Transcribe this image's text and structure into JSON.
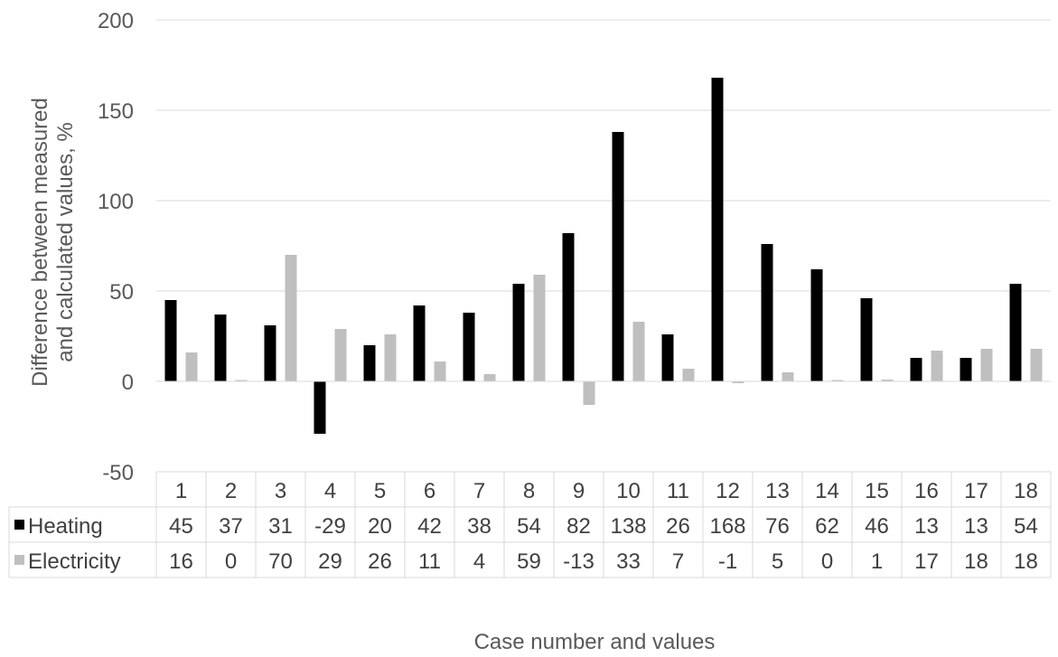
{
  "chart_data": {
    "type": "bar",
    "title": "",
    "xlabel": "Case number and values",
    "ylabel_lines": [
      "Difference between measured",
      "and calculated values, %"
    ],
    "ylim": [
      -50,
      200
    ],
    "yticks": [
      -50,
      0,
      50,
      100,
      150,
      200
    ],
    "grid": true,
    "legend": "data-table",
    "categories": [
      "1",
      "2",
      "3",
      "4",
      "5",
      "6",
      "7",
      "8",
      "9",
      "10",
      "11",
      "12",
      "13",
      "14",
      "15",
      "16",
      "17",
      "18"
    ],
    "series": [
      {
        "name": "Heating",
        "color": "#000000",
        "values": [
          45,
          37,
          31,
          -29,
          20,
          42,
          38,
          54,
          82,
          138,
          26,
          168,
          76,
          62,
          46,
          13,
          13,
          54
        ]
      },
      {
        "name": "Electricity",
        "color": "#bfbfbf",
        "values": [
          16,
          0,
          70,
          29,
          26,
          11,
          4,
          59,
          -13,
          33,
          7,
          -1,
          5,
          0,
          1,
          17,
          18,
          18
        ]
      }
    ]
  }
}
